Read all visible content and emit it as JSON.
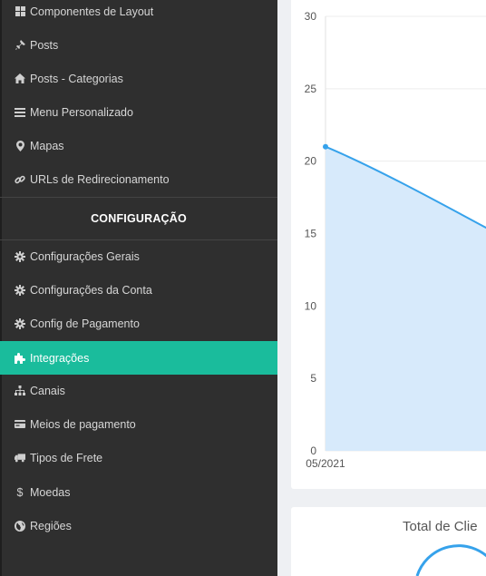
{
  "sidebar": {
    "items_top": [
      {
        "label": "Componentes de Layout",
        "icon": "grid-icon"
      },
      {
        "label": "Posts",
        "icon": "pin-icon"
      },
      {
        "label": "Posts - Categorias",
        "icon": "home-icon"
      },
      {
        "label": "Menu Personalizado",
        "icon": "bars-icon"
      },
      {
        "label": "Mapas",
        "icon": "map-marker-icon"
      },
      {
        "label": "URLs de Redirecionamento",
        "icon": "link-icon"
      }
    ],
    "section_title": "CONFIGURAÇÃO",
    "items_config": [
      {
        "label": "Configurações Gerais",
        "icon": "gear-icon"
      },
      {
        "label": "Configurações da Conta",
        "icon": "gear-icon"
      },
      {
        "label": "Config de Pagamento",
        "icon": "gear-icon"
      },
      {
        "label": "Integrações",
        "icon": "puzzle-icon",
        "active": true
      },
      {
        "label": "Canais",
        "icon": "sitemap-icon"
      },
      {
        "label": "Meios de pagamento",
        "icon": "credit-card-icon"
      },
      {
        "label": "Tipos de Frete",
        "icon": "truck-icon"
      },
      {
        "label": "Moedas",
        "icon": "dollar-icon"
      },
      {
        "label": "Regiões",
        "icon": "globe-icon"
      }
    ],
    "active_color": "#1abc9c"
  },
  "chart_data": {
    "type": "area",
    "x": [
      "05/2021"
    ],
    "ylim": [
      0,
      30
    ],
    "yticks": [
      0,
      5,
      10,
      15,
      20,
      25,
      30
    ],
    "series": [
      {
        "values": [
          21
        ],
        "color": "#36a2eb",
        "fill": "#d7eafb"
      }
    ],
    "grid": true
  },
  "clients_card": {
    "title": "Total de Clie"
  }
}
